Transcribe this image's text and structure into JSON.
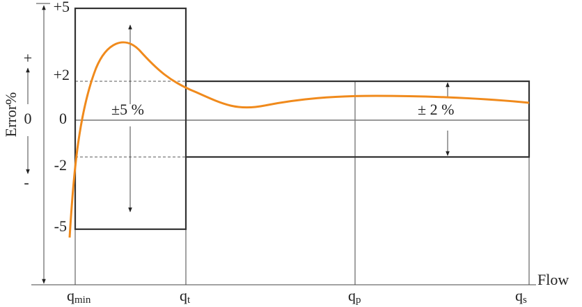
{
  "y_labels": [
    "+5",
    "+2",
    "0",
    "-2",
    "-5"
  ],
  "y_axis": {
    "title": "Error%",
    "plus": "+",
    "zero": "0",
    "minus": "-"
  },
  "annotations": {
    "wide_band": "±5 %",
    "narrow_band": "± 2 %"
  },
  "x_title": "Flow",
  "x_labels": [
    {
      "symbol": "q",
      "sub": "min"
    },
    {
      "symbol": "q",
      "sub": "t"
    },
    {
      "symbol": "q",
      "sub": "p"
    },
    {
      "symbol": "q",
      "sub": "s"
    }
  ]
}
